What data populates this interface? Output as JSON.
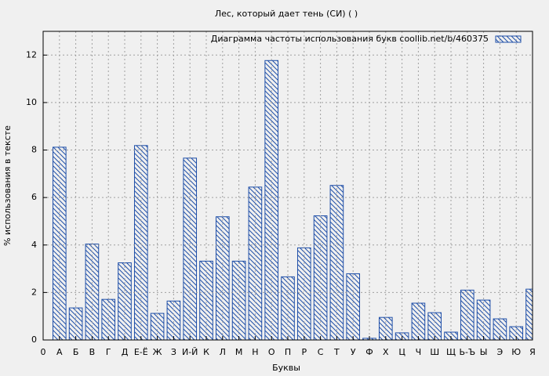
{
  "chart_data": {
    "type": "bar",
    "title": "Лес, который дает тень (СИ) ( )",
    "xlabel": "Буквы",
    "ylabel": "% использования в тексте",
    "x": [
      1,
      2,
      3,
      4,
      5,
      6,
      7,
      8,
      9,
      10,
      11,
      12,
      13,
      14,
      15,
      16,
      17,
      18,
      19,
      20,
      21,
      22,
      23,
      24,
      25,
      26,
      27,
      28,
      29,
      30
    ],
    "series": [
      {
        "name": "Диаграмма частоты использования букв  coollib.net/b/460375",
        "color": "#1f4fa8",
        "values": [
          8.12,
          1.35,
          4.04,
          1.71,
          3.25,
          8.19,
          1.12,
          1.64,
          7.66,
          3.32,
          5.19,
          3.32,
          6.44,
          11.77,
          2.66,
          3.88,
          5.23,
          6.51,
          2.79,
          0.07,
          0.95,
          0.3,
          1.55,
          1.15,
          0.33,
          2.1,
          1.68,
          0.89,
          0.56,
          2.14
        ]
      }
    ],
    "xlim": [
      0,
      30
    ],
    "xticks": [
      0,
      {
        "value": 1,
        "label": "А"
      },
      {
        "value": 2,
        "label": "Б"
      },
      {
        "value": 3,
        "label": "В"
      },
      {
        "value": 4,
        "label": "Г"
      },
      {
        "value": 5,
        "label": "Д"
      },
      {
        "value": 6,
        "label": "Е-Ё"
      },
      {
        "value": 7,
        "label": "Ж"
      },
      {
        "value": 8,
        "label": "З"
      },
      {
        "value": 9,
        "label": "И-Й"
      },
      {
        "value": 10,
        "label": "К"
      },
      {
        "value": 11,
        "label": "Л"
      },
      {
        "value": 12,
        "label": "М"
      },
      {
        "value": 13,
        "label": "Н"
      },
      {
        "value": 14,
        "label": "О"
      },
      {
        "value": 15,
        "label": "П"
      },
      {
        "value": 16,
        "label": "Р"
      },
      {
        "value": 17,
        "label": "С"
      },
      {
        "value": 18,
        "label": "Т"
      },
      {
        "value": 19,
        "label": "У"
      },
      {
        "value": 20,
        "label": "Ф"
      },
      {
        "value": 21,
        "label": "Х"
      },
      {
        "value": 22,
        "label": "Ц"
      },
      {
        "value": 23,
        "label": "Ч"
      },
      {
        "value": 24,
        "label": "Ш"
      },
      {
        "value": 25,
        "label": "Щ"
      },
      {
        "value": 26,
        "label": "Ь-Ъ"
      },
      {
        "value": 27,
        "label": "Ы"
      },
      {
        "value": 28,
        "label": "Э"
      },
      {
        "value": 29,
        "label": "Ю"
      },
      {
        "value": 30,
        "label": "Я"
      }
    ],
    "ylim": [
      0,
      13
    ],
    "yticks": [
      0,
      2,
      4,
      6,
      8,
      10,
      12
    ],
    "grid": true,
    "legend": "top-right"
  }
}
